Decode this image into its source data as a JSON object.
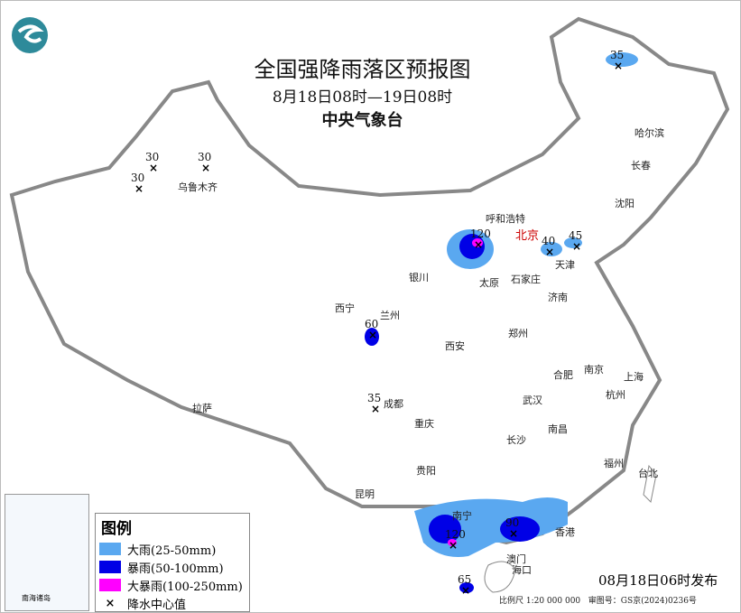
{
  "title": "全国强降雨落区预报图",
  "period": "8月18日08时—19日08时",
  "issuer": "中央气象台",
  "logo": "china-meteorological-logo",
  "colors": {
    "heavy_rain": "#5aa8f0",
    "rainstorm": "#0000e6",
    "heavy_rainstorm": "#ff00ff",
    "border": "#888888"
  },
  "legend": {
    "title": "图例",
    "items": [
      {
        "label": "大雨(25-50mm)",
        "color": "#5aa8f0"
      },
      {
        "label": "暴雨(50-100mm)",
        "color": "#0000e6"
      },
      {
        "label": "大暴雨(100-250mm)",
        "color": "#ff00ff"
      },
      {
        "label": "降水中心值",
        "symbol": "×"
      }
    ]
  },
  "cities": [
    "哈尔滨",
    "长春",
    "沈阳",
    "呼和浩特",
    "北京",
    "天津",
    "石家庄",
    "太原",
    "济南",
    "银川",
    "西宁",
    "兰州",
    "西安",
    "郑州",
    "合肥",
    "南京",
    "上海",
    "杭州",
    "武汉",
    "成都",
    "重庆",
    "长沙",
    "南昌",
    "拉萨",
    "贵阳",
    "福州",
    "台北",
    "昆明",
    "南宁",
    "澳门",
    "香港",
    "海口",
    "乌鲁木齐"
  ],
  "centers": [
    "35",
    "30",
    "30",
    "30",
    "120",
    "40",
    "45",
    "60",
    "35",
    "120",
    "90",
    "65"
  ],
  "issued": "08月18日06时发布",
  "scale": "比例尺 1:20 000 000",
  "review_no": "审图号：GS京(2024)0236号",
  "inset": "南海诸岛"
}
